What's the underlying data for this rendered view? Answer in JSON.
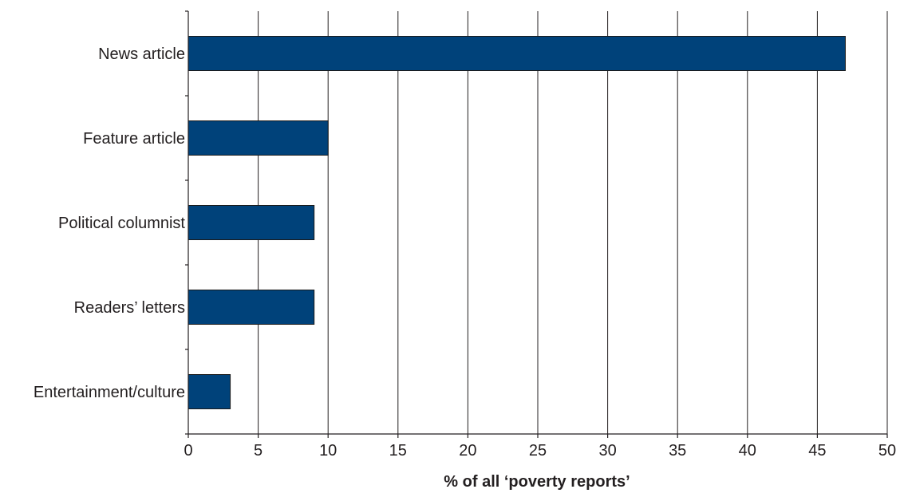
{
  "chart_data": {
    "type": "bar",
    "orientation": "horizontal",
    "categories": [
      "News article",
      "Feature article",
      "Political columnist",
      "Readers’ letters",
      "Entertainment/culture"
    ],
    "values": [
      47,
      10,
      9,
      9,
      3
    ],
    "xlabel": "% of all ‘poverty reports’",
    "ylabel": "",
    "xlim": [
      0,
      50
    ],
    "xticks": [
      0,
      5,
      10,
      15,
      20,
      25,
      30,
      35,
      40,
      45,
      50
    ],
    "grid": "vertical",
    "bar_color": "#00427a"
  }
}
